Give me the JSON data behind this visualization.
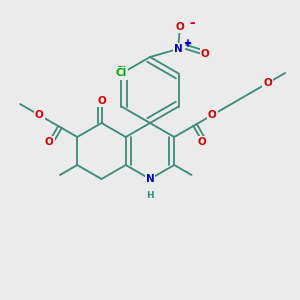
{
  "bg_color": "#ebebeb",
  "bond_color": "#3a8a7a",
  "atom_colors": {
    "O": "#dd0000",
    "N": "#0000cc",
    "Cl": "#00aa00",
    "teal": "#3a8a7a"
  },
  "bw": 1.3,
  "fs": 7.5,
  "fs2": 6.0,
  "scale": 1.0
}
